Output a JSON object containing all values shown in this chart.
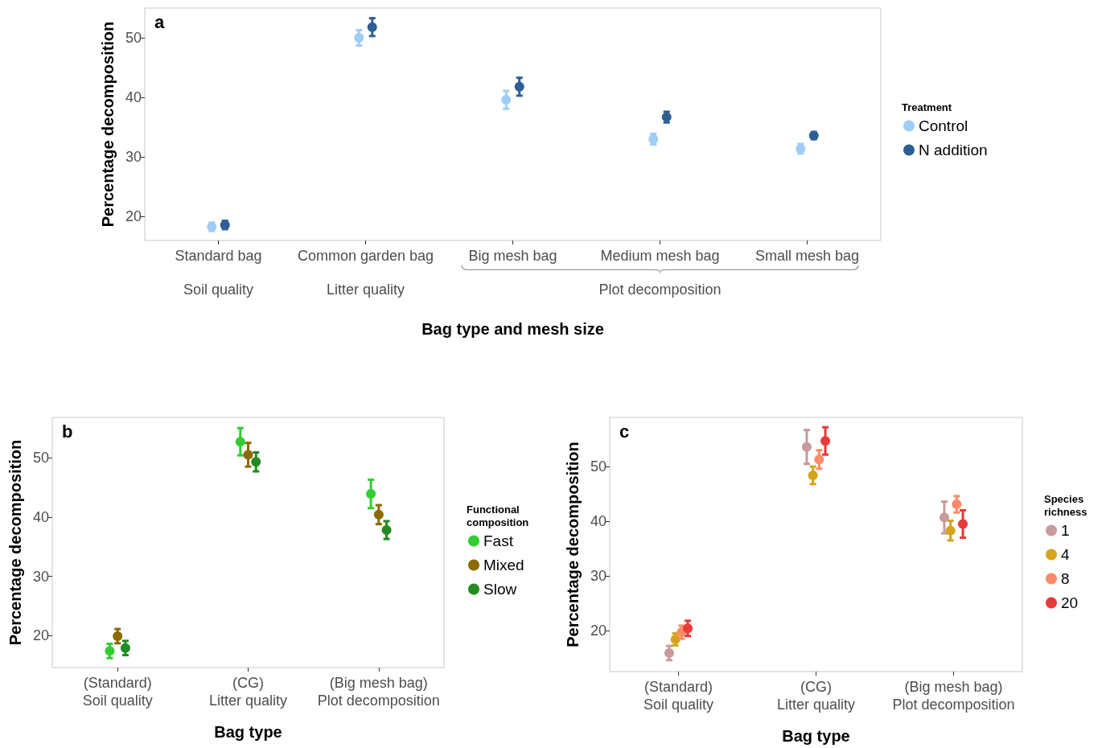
{
  "chart_data": [
    {
      "type": "scatter",
      "xlabel": "Bag type and mesh size",
      "ylabel": "Percentage decomposition",
      "legend_title": "Treatment",
      "categories": [
        "Standard bag",
        "Common garden bag",
        "Big mesh bag",
        "Medium mesh bag",
        "Small mesh bag"
      ],
      "series": [
        {
          "name": "Control",
          "color": "#9fcdf7",
          "values": [
            18.3,
            50.0,
            39.6,
            33.0,
            31.4
          ],
          "errors": [
            0.7,
            1.3,
            1.5,
            0.9,
            0.8
          ]
        },
        {
          "name": "N addition",
          "color": "#2e5f94",
          "values": [
            18.6,
            51.8,
            41.8,
            36.7,
            33.6
          ],
          "errors": [
            0.7,
            1.5,
            1.5,
            0.9,
            0.6
          ]
        }
      ],
      "ylim": [
        16,
        55
      ],
      "yticks": [
        20,
        30,
        40,
        50
      ],
      "grid": false,
      "legend": "right",
      "marker": "circle",
      "annotations": [
        "a",
        "Soil quality",
        "Litter quality",
        "Plot decomposition"
      ]
    },
    {
      "type": "scatter",
      "xlabel": "Bag type",
      "ylabel": "Percentage decomposition",
      "legend_title": "Functional\ncomposition",
      "categories": [
        "(Standard)\nSoil quality",
        "(CG)\nLitter quality",
        "(Big mesh bag)\nPlot decomposition"
      ],
      "series": [
        {
          "name": "Fast",
          "color": "#33cc33",
          "values": [
            17.4,
            52.7,
            43.9
          ],
          "errors": [
            1.2,
            2.3,
            2.4
          ]
        },
        {
          "name": "Mixed",
          "color": "#8b6a00",
          "values": [
            19.9,
            50.5,
            40.4
          ],
          "errors": [
            1.2,
            2.0,
            1.6
          ]
        },
        {
          "name": "Slow",
          "color": "#228b22",
          "values": [
            17.9,
            49.3,
            37.8
          ],
          "errors": [
            1.2,
            1.6,
            1.5
          ]
        }
      ],
      "ylim": [
        14.6,
        56.8
      ],
      "yticks": [
        20,
        30,
        40,
        50
      ],
      "grid": false,
      "legend": "right",
      "marker": "circle",
      "annotations": [
        "b"
      ]
    },
    {
      "type": "scatter",
      "xlabel": "Bag type",
      "ylabel": "Percentage decomposition",
      "legend_title": "Species\nrichness",
      "categories": [
        "(Standard)\nSoil quality",
        "(CG)\nLitter quality",
        "(Big mesh bag)\nPlot decomposition"
      ],
      "series": [
        {
          "name": "1",
          "color": "#c99a9a",
          "values": [
            15.9,
            53.6,
            40.7
          ],
          "errors": [
            1.3,
            3.1,
            2.9
          ]
        },
        {
          "name": "4",
          "color": "#d4a41c",
          "values": [
            18.4,
            48.4,
            38.3
          ],
          "errors": [
            1.1,
            1.6,
            1.8
          ]
        },
        {
          "name": "8",
          "color": "#ff8a66",
          "values": [
            19.7,
            51.3,
            43.1
          ],
          "errors": [
            1.2,
            1.7,
            1.5
          ]
        },
        {
          "name": "20",
          "color": "#e83a3a",
          "values": [
            20.4,
            54.7,
            39.5
          ],
          "errors": [
            1.4,
            2.5,
            2.5
          ]
        }
      ],
      "ylim": [
        12.5,
        59
      ],
      "yticks": [
        20,
        30,
        40,
        50
      ],
      "grid": false,
      "legend": "right",
      "marker": "circle",
      "annotations": [
        "c"
      ]
    }
  ]
}
